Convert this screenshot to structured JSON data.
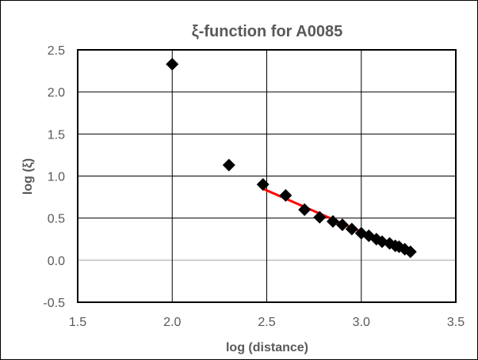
{
  "chart_data": {
    "type": "scatter",
    "title": "ξ-function for  A0085",
    "xlabel": "log (distance)",
    "ylabel": "log (ξ)",
    "xlim": [
      1.5,
      3.5
    ],
    "ylim": [
      -0.5,
      2.5
    ],
    "x_ticks": [
      "1.5",
      "2.0",
      "2.5",
      "3.0",
      "3.5"
    ],
    "y_ticks": [
      "-0.5",
      "0.0",
      "0.5",
      "1.0",
      "1.5",
      "2.0",
      "2.5"
    ],
    "x_tick_values": [
      1.5,
      2.0,
      2.5,
      3.0,
      3.5
    ],
    "y_tick_values": [
      -0.5,
      0.0,
      0.5,
      1.0,
      1.5,
      2.0,
      2.5
    ],
    "grid": true,
    "legend": "none",
    "series": [
      {
        "marker": "diamond",
        "color": "#000000",
        "points": [
          {
            "x": 2.0,
            "y": 2.33
          },
          {
            "x": 2.3,
            "y": 1.13
          },
          {
            "x": 2.48,
            "y": 0.9
          },
          {
            "x": 2.6,
            "y": 0.77
          },
          {
            "x": 2.7,
            "y": 0.6
          },
          {
            "x": 2.78,
            "y": 0.51
          },
          {
            "x": 2.85,
            "y": 0.46
          },
          {
            "x": 2.9,
            "y": 0.42
          },
          {
            "x": 2.95,
            "y": 0.37
          },
          {
            "x": 3.0,
            "y": 0.32
          },
          {
            "x": 3.04,
            "y": 0.29
          },
          {
            "x": 3.08,
            "y": 0.25
          },
          {
            "x": 3.11,
            "y": 0.22
          },
          {
            "x": 3.15,
            "y": 0.2
          },
          {
            "x": 3.18,
            "y": 0.17
          },
          {
            "x": 3.2,
            "y": 0.16
          },
          {
            "x": 3.23,
            "y": 0.13
          },
          {
            "x": 3.26,
            "y": 0.1
          }
        ]
      }
    ],
    "fit_line": {
      "color": "#ff0000",
      "from": {
        "x": 2.48,
        "y": 0.85
      },
      "to": {
        "x": 3.26,
        "y": 0.08
      }
    }
  }
}
